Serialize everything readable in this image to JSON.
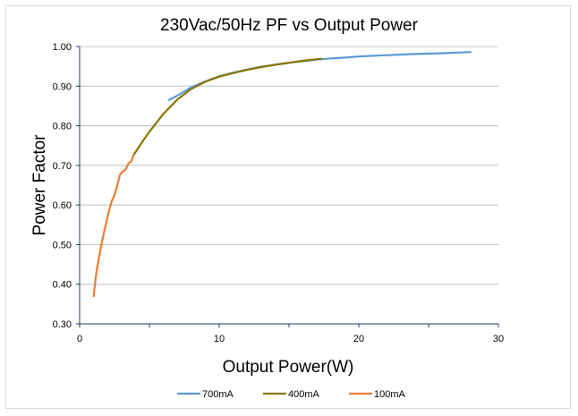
{
  "chart_data": {
    "type": "line",
    "title": "230Vac/50Hz PF vs Output Power",
    "xlabel": "Output Power(W)",
    "ylabel": "Power Factor",
    "xlim": [
      0,
      30
    ],
    "ylim": [
      0.3,
      1.0
    ],
    "x_ticks": [
      "0",
      "10",
      "20",
      "30"
    ],
    "y_ticks": [
      "0.30",
      "0.40",
      "0.50",
      "0.60",
      "0.70",
      "0.80",
      "0.90",
      "1.00"
    ],
    "grid": "horizontal",
    "legend_position": "bottom",
    "series": [
      {
        "name": "700mA",
        "color": "#5b9bd5",
        "points": [
          [
            6.4,
            0.865
          ],
          [
            7,
            0.876
          ],
          [
            8,
            0.897
          ],
          [
            9,
            0.912
          ],
          [
            10,
            0.925
          ],
          [
            11,
            0.934
          ],
          [
            12,
            0.942
          ],
          [
            13,
            0.949
          ],
          [
            14,
            0.954
          ],
          [
            15,
            0.959
          ],
          [
            16,
            0.963
          ],
          [
            17,
            0.967
          ],
          [
            18,
            0.97
          ],
          [
            19,
            0.972
          ],
          [
            20,
            0.975
          ],
          [
            22,
            0.978
          ],
          [
            24,
            0.981
          ],
          [
            26,
            0.983
          ],
          [
            28,
            0.986
          ]
        ]
      },
      {
        "name": "400mA",
        "color": "#8b7500",
        "points": [
          [
            3.9,
            0.728
          ],
          [
            4.5,
            0.76
          ],
          [
            5,
            0.785
          ],
          [
            6,
            0.83
          ],
          [
            7,
            0.866
          ],
          [
            8,
            0.893
          ],
          [
            9,
            0.911
          ],
          [
            10,
            0.924
          ],
          [
            11,
            0.933
          ],
          [
            12,
            0.941
          ],
          [
            13,
            0.948
          ],
          [
            14,
            0.954
          ],
          [
            15,
            0.959
          ],
          [
            16,
            0.964
          ],
          [
            17.3,
            0.969
          ]
        ]
      },
      {
        "name": "100mA",
        "color": "#ed7d31",
        "points": [
          [
            1.0,
            0.37
          ],
          [
            1.2,
            0.43
          ],
          [
            1.5,
            0.49
          ],
          [
            1.8,
            0.54
          ],
          [
            2.1,
            0.585
          ],
          [
            2.3,
            0.61
          ],
          [
            2.5,
            0.625
          ],
          [
            2.7,
            0.65
          ],
          [
            2.9,
            0.677
          ],
          [
            3.1,
            0.685
          ],
          [
            3.3,
            0.69
          ],
          [
            3.5,
            0.705
          ],
          [
            3.7,
            0.71
          ],
          [
            3.85,
            0.725
          ]
        ]
      }
    ]
  }
}
